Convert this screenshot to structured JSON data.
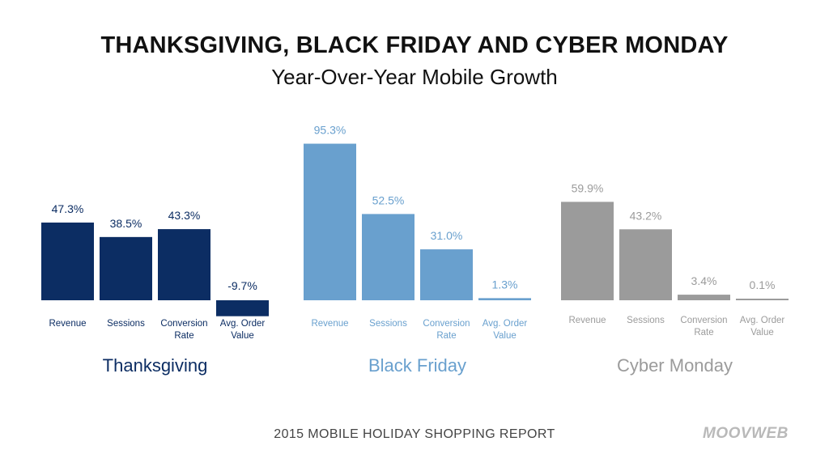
{
  "header": {
    "title": "THANKSGIVING, BLACK FRIDAY AND CYBER MONDAY",
    "subtitle": "Year-Over-Year Mobile Growth"
  },
  "footer": {
    "report_label": "2015 MOBILE HOLIDAY SHOPPING REPORT",
    "logo_text": "MOOVWEB"
  },
  "chart_data": [
    {
      "type": "bar",
      "name": "Thanksgiving",
      "color": "#0c2d63",
      "categories": [
        "Revenue",
        "Sessions",
        "Conversion\nRate",
        "Avg. Order\nValue"
      ],
      "values": [
        47.3,
        38.5,
        43.3,
        -9.7
      ],
      "value_labels": [
        "47.3%",
        "38.5%",
        "43.3%",
        "-9.7%"
      ]
    },
    {
      "type": "bar",
      "name": "Black Friday",
      "color": "#69a0ce",
      "categories": [
        "Revenue",
        "Sessions",
        "Conversion\nRate",
        "Avg. Order\nValue"
      ],
      "values": [
        95.3,
        52.5,
        31.0,
        1.3
      ],
      "value_labels": [
        "95.3%",
        "52.5%",
        "31.0%",
        "1.3%"
      ]
    },
    {
      "type": "bar",
      "name": "Cyber Monday",
      "color": "#9b9b9b",
      "categories": [
        "Revenue",
        "Sessions",
        "Conversion\nRate",
        "Avg. Order\nValue"
      ],
      "values": [
        59.9,
        43.2,
        3.4,
        0.1
      ],
      "value_labels": [
        "59.9%",
        "43.2%",
        "3.4%",
        "0.1%"
      ]
    }
  ]
}
